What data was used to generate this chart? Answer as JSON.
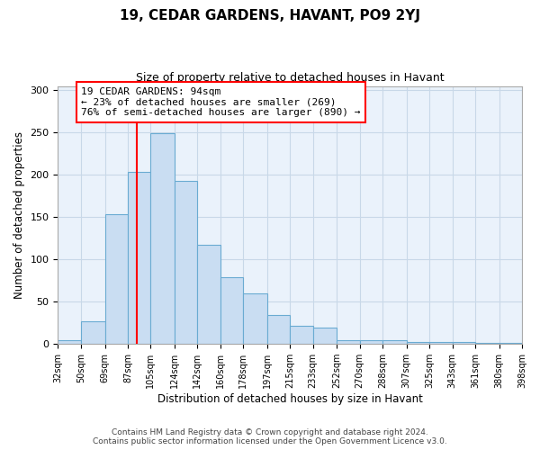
{
  "title": "19, CEDAR GARDENS, HAVANT, PO9 2YJ",
  "subtitle": "Size of property relative to detached houses in Havant",
  "xlabel": "Distribution of detached houses by size in Havant",
  "ylabel": "Number of detached properties",
  "footer_lines": [
    "Contains HM Land Registry data © Crown copyright and database right 2024.",
    "Contains public sector information licensed under the Open Government Licence v3.0."
  ],
  "bins": [
    32,
    50,
    69,
    87,
    105,
    124,
    142,
    160,
    178,
    197,
    215,
    233,
    252,
    270,
    288,
    307,
    325,
    343,
    361,
    380,
    398
  ],
  "counts": [
    5,
    27,
    153,
    203,
    249,
    193,
    117,
    79,
    60,
    34,
    22,
    19,
    5,
    5,
    5,
    2,
    2,
    2,
    1,
    1
  ],
  "bar_color": "#c9ddf2",
  "bar_edge_color": "#6aabd2",
  "bar_edge_width": 0.8,
  "grid_color": "#c8d8e8",
  "bg_color": "#eaf2fb",
  "annotation_text": "19 CEDAR GARDENS: 94sqm\n← 23% of detached houses are smaller (269)\n76% of semi-detached houses are larger (890) →",
  "annotation_box_color": "white",
  "annotation_box_edge_color": "red",
  "vline_x": 94,
  "vline_color": "red",
  "ylim": [
    0,
    305
  ],
  "yticks": [
    0,
    50,
    100,
    150,
    200,
    250,
    300
  ],
  "tick_labels": [
    "32sqm",
    "50sqm",
    "69sqm",
    "87sqm",
    "105sqm",
    "124sqm",
    "142sqm",
    "160sqm",
    "178sqm",
    "197sqm",
    "215sqm",
    "233sqm",
    "252sqm",
    "270sqm",
    "288sqm",
    "307sqm",
    "325sqm",
    "343sqm",
    "361sqm",
    "380sqm",
    "398sqm"
  ]
}
